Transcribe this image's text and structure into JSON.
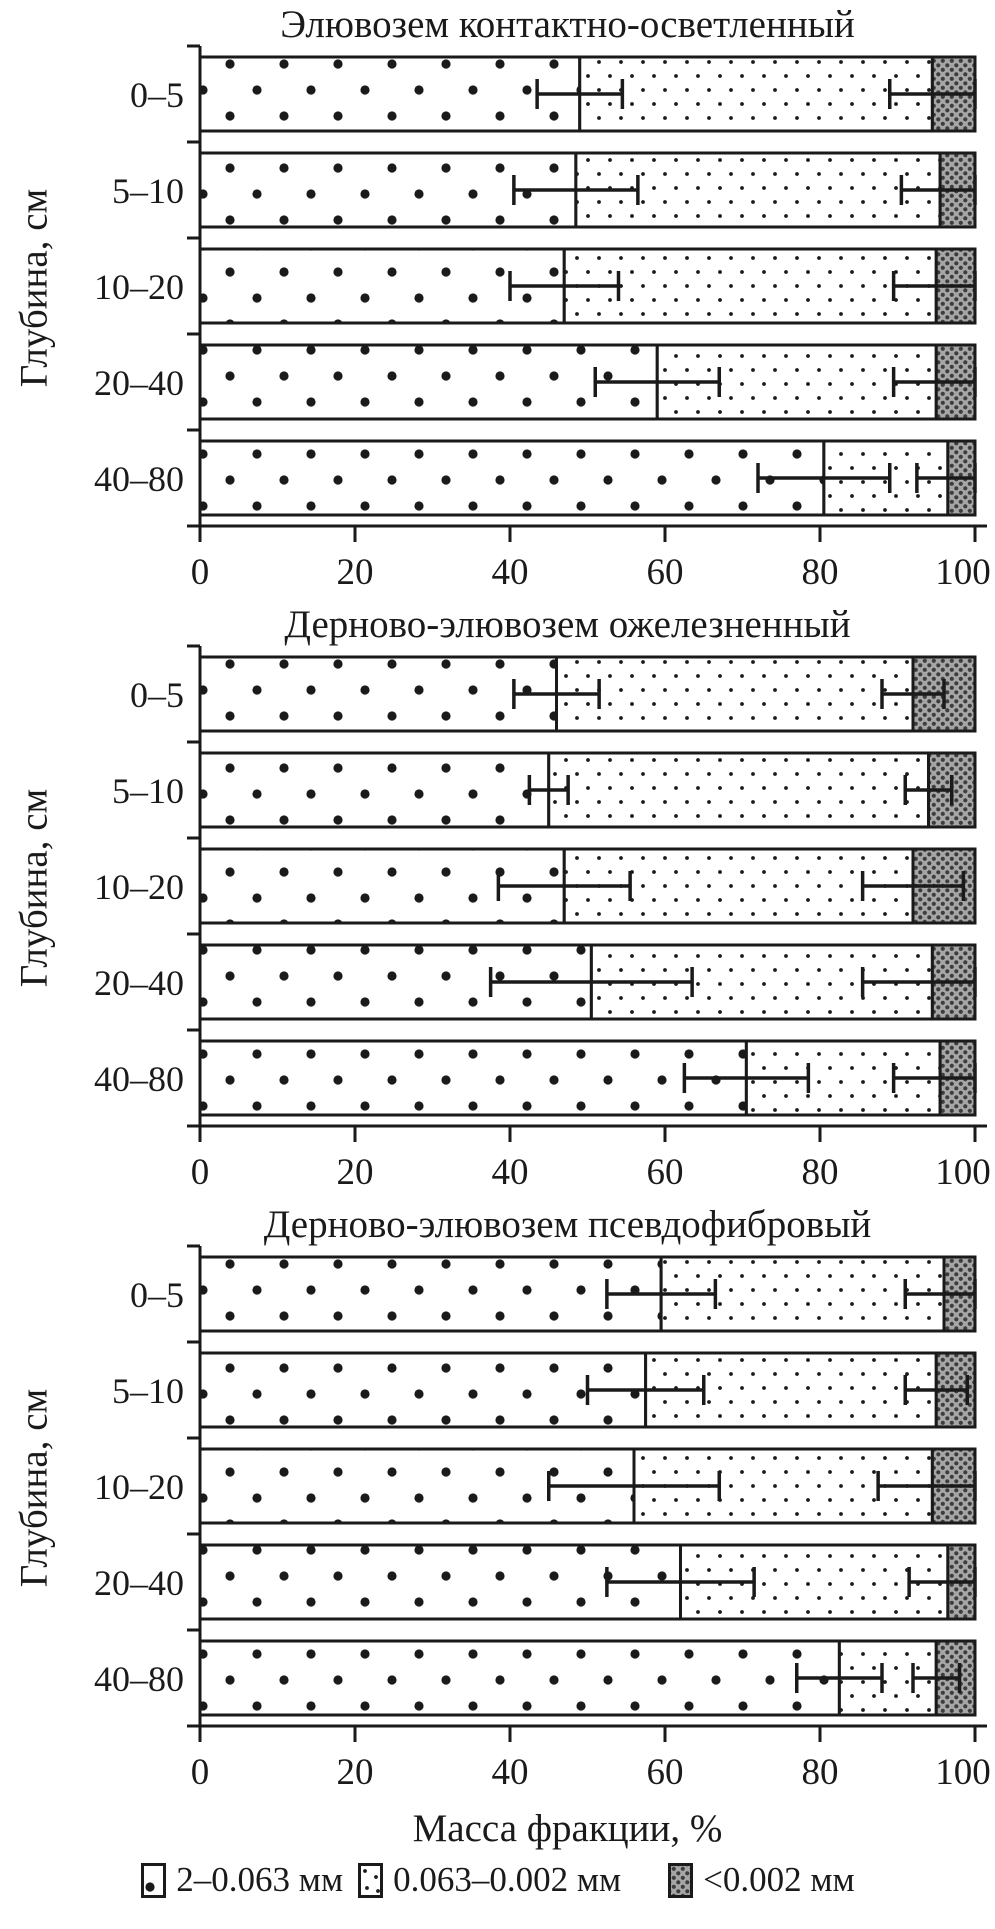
{
  "colors": {
    "ink": "#1a1a1a",
    "mesh_bg": "#a6a6a6",
    "mesh_fg": "#3d3d3d",
    "bar_fill": "#ffffff"
  },
  "figure": {
    "y_axis_label": "Глубина, см",
    "x_axis_label": "Масса фракции, %",
    "x_ticks": [
      0,
      20,
      40,
      60,
      80,
      100
    ],
    "x_range": [
      0,
      100
    ]
  },
  "legend": [
    {
      "label": "2–0.063 мм",
      "pattern": "coarse-dots"
    },
    {
      "label": "0.063–0.002 мм",
      "pattern": "fine-dots"
    },
    {
      "label": "<0.002 мм",
      "pattern": "dark-mesh"
    }
  ],
  "chart_data": [
    {
      "type": "bar",
      "orientation": "horizontal",
      "stacked": true,
      "title": "Элювозем контактно-осветленный",
      "categories": [
        "0–5",
        "5–10",
        "10–20",
        "20–40",
        "40–80"
      ],
      "xlim": [
        0,
        100
      ],
      "series": [
        {
          "name": "2–0.063 мм",
          "values": [
            49,
            48.5,
            47,
            59,
            80.5
          ],
          "boundary_errors": [
            5.5,
            8,
            7,
            8,
            8.5
          ]
        },
        {
          "name": "0.063–0.002 мм",
          "values": [
            45.5,
            47,
            48,
            36,
            16
          ],
          "boundary_errors": [
            5.5,
            5,
            5.5,
            5.5,
            4
          ]
        },
        {
          "name": "<0.002 мм",
          "values": [
            5.5,
            4.5,
            5,
            5,
            3.5
          ]
        }
      ]
    },
    {
      "type": "bar",
      "orientation": "horizontal",
      "stacked": true,
      "title": "Дерново-элювозем ожелезненный",
      "categories": [
        "0–5",
        "5–10",
        "10–20",
        "20–40",
        "40–80"
      ],
      "xlim": [
        0,
        100
      ],
      "series": [
        {
          "name": "2–0.063 мм",
          "values": [
            46,
            45,
            47,
            50.5,
            70.5
          ],
          "boundary_errors": [
            5.5,
            2.5,
            8.5,
            13,
            8
          ]
        },
        {
          "name": "0.063–0.002 мм",
          "values": [
            46,
            49,
            45,
            44,
            25
          ],
          "boundary_errors": [
            4,
            3,
            6.5,
            9,
            6
          ]
        },
        {
          "name": "<0.002 мм",
          "values": [
            8,
            6,
            8,
            5.5,
            4.5
          ]
        }
      ]
    },
    {
      "type": "bar",
      "orientation": "horizontal",
      "stacked": true,
      "title": "Дерново-элювозем псевдофибровый",
      "categories": [
        "0–5",
        "5–10",
        "10–20",
        "20–40",
        "40–80"
      ],
      "xlim": [
        0,
        100
      ],
      "series": [
        {
          "name": "2–0.063 мм",
          "values": [
            59.5,
            57.5,
            56,
            62,
            82.5
          ],
          "boundary_errors": [
            7,
            7.5,
            11,
            9.5,
            5.5
          ]
        },
        {
          "name": "0.063–0.002 мм",
          "values": [
            36.5,
            37.5,
            38.5,
            34.5,
            12.5
          ],
          "boundary_errors": [
            5,
            4,
            7,
            5,
            3
          ]
        },
        {
          "name": "<0.002 мм",
          "values": [
            4,
            5,
            5.5,
            3.5,
            5
          ]
        }
      ]
    }
  ]
}
